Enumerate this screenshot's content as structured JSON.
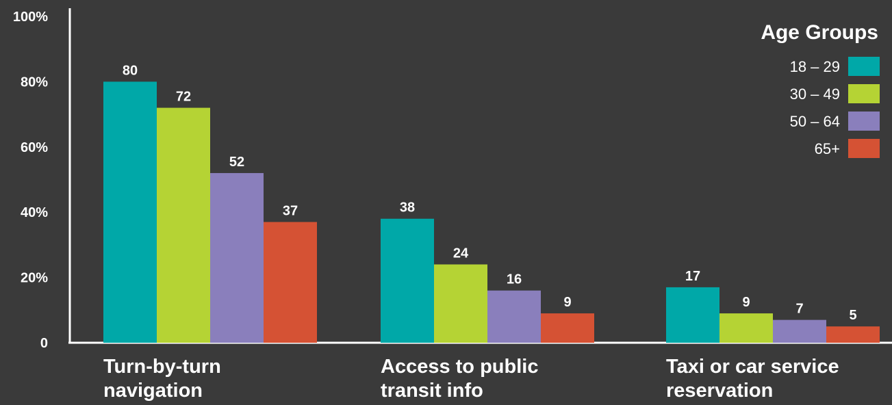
{
  "chart_data": {
    "type": "bar",
    "categories": [
      [
        "Turn-by-turn",
        "navigation"
      ],
      [
        "Access to public",
        "transit info"
      ],
      [
        "Taxi or car service",
        "reservation"
      ]
    ],
    "series": [
      {
        "name": "18 – 29",
        "color": "#00a8a8",
        "values": [
          80,
          38,
          17
        ]
      },
      {
        "name": "30 – 49",
        "color": "#b5d334",
        "values": [
          72,
          24,
          9
        ]
      },
      {
        "name": "50 – 64",
        "color": "#8a7fbc",
        "values": [
          52,
          16,
          7
        ]
      },
      {
        "name": "65+",
        "color": "#d55234",
        "values": [
          37,
          9,
          5
        ]
      }
    ],
    "yticks": [
      {
        "value": 0,
        "label": "0"
      },
      {
        "value": 20,
        "label": "20%"
      },
      {
        "value": 40,
        "label": "40%"
      },
      {
        "value": 60,
        "label": "60%"
      },
      {
        "value": 80,
        "label": "80%"
      },
      {
        "value": 100,
        "label": "100%"
      }
    ],
    "ylim": [
      0,
      100
    ],
    "legend": {
      "title": "Age Groups",
      "position": "top-right"
    },
    "grid": false
  }
}
